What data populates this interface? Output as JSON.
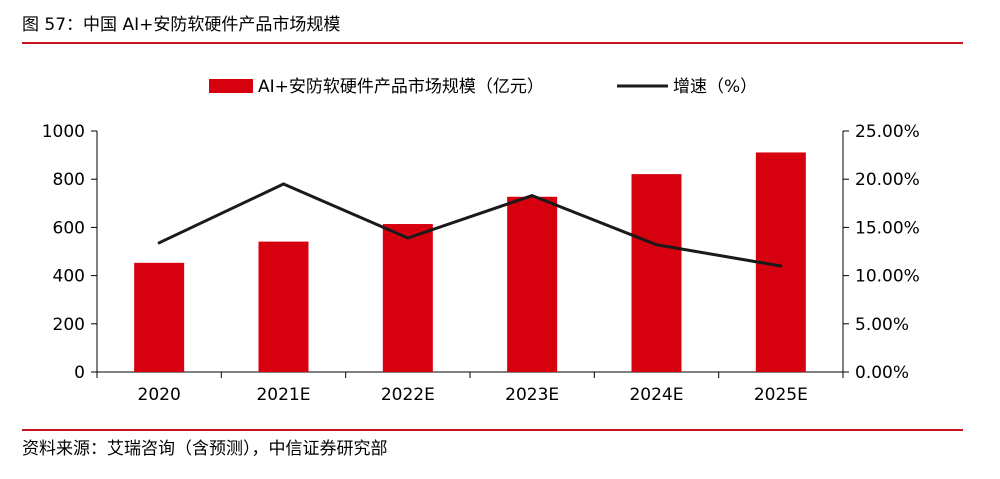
{
  "figure": {
    "title": "图 57：中国 AI+安防软硬件产品市场规模",
    "source": "资料来源：艾瑞咨询（含预测），中信证券研究部"
  },
  "colors": {
    "accent": "#c8141e",
    "bar": "#d7000f",
    "line": "#1a1a1a",
    "axis": "#000000"
  },
  "chart_data": {
    "type": "bar",
    "categories": [
      "2020",
      "2021E",
      "2022E",
      "2023E",
      "2024E",
      "2025E"
    ],
    "series": [
      {
        "name": "AI+安防软硬件产品市场规模（亿元）",
        "type": "bar",
        "axis": "left",
        "values": [
          453,
          541,
          614,
          727,
          821,
          911
        ]
      },
      {
        "name": "增速（%）",
        "type": "line",
        "axis": "right",
        "values": [
          13.4,
          19.5,
          13.9,
          18.3,
          13.2,
          11.0
        ]
      }
    ],
    "y_left": {
      "min": 0,
      "max": 1000,
      "ticks": [
        "0",
        "200",
        "400",
        "600",
        "800",
        "1000"
      ]
    },
    "y_right": {
      "min": 0,
      "max": 25,
      "ticks": [
        "0.00%",
        "5.00%",
        "10.00%",
        "15.00%",
        "20.00%",
        "25.00%"
      ]
    },
    "legend": "top-center",
    "grid": false
  }
}
